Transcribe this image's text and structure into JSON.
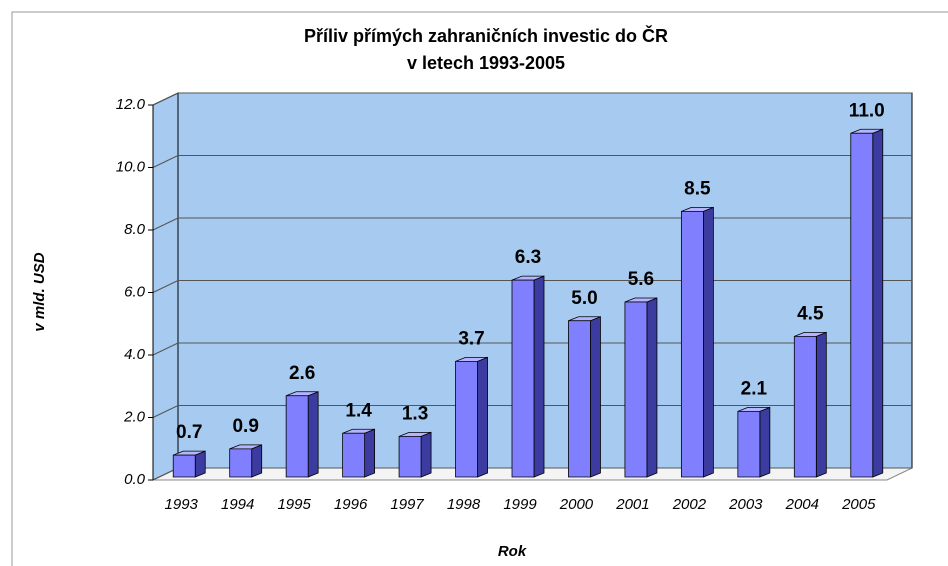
{
  "chart_data": {
    "type": "bar3d",
    "title": [
      "Příliv přímých zahraničních investic do ČR",
      "v letech 1993-2005"
    ],
    "y_label": "v mld. USD",
    "x_label": "Rok",
    "categories": [
      "1993",
      "1994",
      "1995",
      "1996",
      "1997",
      "1998",
      "1999",
      "2000",
      "2001",
      "2002",
      "2003",
      "2004",
      "2005"
    ],
    "values": [
      0.7,
      0.9,
      2.6,
      1.4,
      1.3,
      3.7,
      6.3,
      5.0,
      5.6,
      8.5,
      2.1,
      4.5,
      11.0
    ],
    "value_labels": [
      "0.7",
      "0.9",
      "2.6",
      "1.4",
      "1.3",
      "3.7",
      "6.3",
      "5.0",
      "5.6",
      "8.5",
      "2.1",
      "4.5",
      "11.0"
    ],
    "color": "#8080ff",
    "wall_color": "#a6caf0",
    "ylim": [
      0,
      12
    ],
    "yticks": [
      {
        "value": 0,
        "label": "0.0"
      },
      {
        "value": 2,
        "label": "2.0"
      },
      {
        "value": 4,
        "label": "4.0"
      },
      {
        "value": 6,
        "label": "6.0"
      },
      {
        "value": 8,
        "label": "8.0"
      },
      {
        "value": 10,
        "label": "10.0"
      },
      {
        "value": 12,
        "label": "12.0"
      }
    ],
    "grid": true
  }
}
